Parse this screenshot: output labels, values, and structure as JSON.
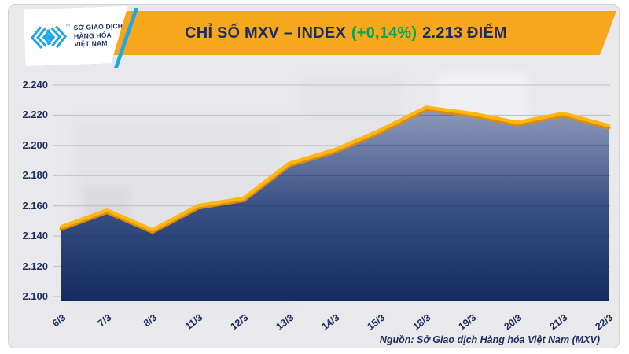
{
  "header": {
    "logo": {
      "lines": [
        "SỞ GIAO DỊCH",
        "HÀNG HÓA",
        "VIỆT NAM"
      ],
      "tm": "™"
    },
    "title_main": "CHỈ SỐ MXV – INDEX",
    "title_change": "(+0,14%)",
    "title_value": "2.213 ĐIỂM"
  },
  "footer": {
    "source": "Nguồn: Sở Giao dịch Hàng hóa Việt Nam (MXV)"
  },
  "colors": {
    "banner_yellow": "#F7A71C",
    "navy": "#1B2E5F",
    "green": "#00A551",
    "logo_cyan": "#1CA7E8",
    "panel_bg": "#E9E9EC",
    "grid_light": "#B9BCC4",
    "grid_dark": "#1B2E5F",
    "line_yellow": "#FDB712",
    "line_shadow": "#E08A07",
    "area_top": "#93A0BE",
    "area_mid": "#3D5286",
    "area_bottom": "#152C5E"
  },
  "chart_data": {
    "type": "area",
    "title": "CHỈ SỐ MXV – INDEX (+0,14%) 2.213 ĐIỂM",
    "categories": [
      "6/3",
      "7/3",
      "8/3",
      "11/3",
      "12/3",
      "13/3",
      "14/3",
      "15/3",
      "18/3",
      "19/3",
      "20/3",
      "21/3",
      "22/3"
    ],
    "values": [
      2146,
      2157,
      2144,
      2160,
      2165,
      2188,
      2197,
      2210,
      2225,
      2221,
      2215,
      2221,
      2213
    ],
    "xlabel": "",
    "ylabel": "",
    "ylim": [
      2100,
      2240
    ],
    "y_tick_labels": [
      "2.240",
      "2.220",
      "2.200",
      "2.180",
      "2.160",
      "2.140",
      "2.120",
      "2.100"
    ],
    "grid": true,
    "legend": "none",
    "last_value_label": "2.213",
    "change_label": "+0,14%"
  }
}
